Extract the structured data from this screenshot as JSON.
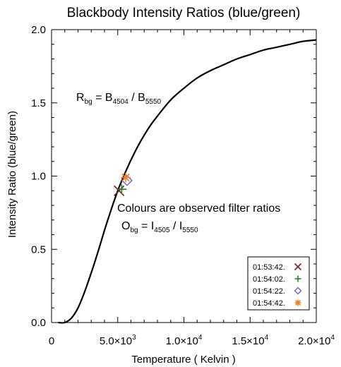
{
  "chart_data": {
    "type": "line",
    "title": "Blackbody Intensity Ratios (blue/green)",
    "xlabel": "Temperature ( Kelvin )",
    "ylabel": "Intensity Ratio (blue/green)",
    "xlim": [
      0,
      20000
    ],
    "ylim": [
      0,
      2.0
    ],
    "x_ticks": [
      {
        "value": 0,
        "label": "0",
        "mant": "",
        "exp": ""
      },
      {
        "value": 5000,
        "label": "",
        "mant": "5.0×10",
        "exp": "3"
      },
      {
        "value": 10000,
        "label": "",
        "mant": "1.0×10",
        "exp": "4"
      },
      {
        "value": 15000,
        "label": "",
        "mant": "1.5×10",
        "exp": "4"
      },
      {
        "value": 20000,
        "label": "",
        "mant": "2.0×10",
        "exp": "4"
      }
    ],
    "y_ticks": [
      {
        "value": 0.0,
        "label": "0.0"
      },
      {
        "value": 0.5,
        "label": "0.5"
      },
      {
        "value": 1.0,
        "label": "1.0"
      },
      {
        "value": 1.5,
        "label": "1.5"
      },
      {
        "value": 2.0,
        "label": "2.0"
      }
    ],
    "curve": {
      "x": [
        500,
        1000,
        1500,
        2000,
        2500,
        3000,
        3500,
        4000,
        4500,
        5000,
        5500,
        6000,
        6500,
        7000,
        7500,
        8000,
        9000,
        10000,
        11000,
        12000,
        13000,
        14000,
        15000,
        16000,
        17000,
        18000,
        19000,
        20000
      ],
      "y": [
        0.0,
        0.0,
        0.03,
        0.1,
        0.21,
        0.34,
        0.48,
        0.63,
        0.77,
        0.9,
        1.01,
        1.11,
        1.2,
        1.28,
        1.35,
        1.41,
        1.52,
        1.6,
        1.67,
        1.72,
        1.76,
        1.8,
        1.83,
        1.86,
        1.88,
        1.9,
        1.92,
        1.93
      ]
    },
    "annotations": {
      "rbg": {
        "main": "R",
        "sub": "bg",
        "eq": " = B",
        "sub2": "4504",
        "div": " / B",
        "sub3": "5550"
      },
      "observed_note": "Colours are observed filter ratios",
      "obg": {
        "main": "O",
        "sub": "bg",
        "eq": " = I",
        "sub2": "4505",
        "div": " / I",
        "sub3": "5550"
      }
    },
    "legend_position": "bottom-right",
    "series": [
      {
        "name": "01:53:42.",
        "marker": "x",
        "color": "#8b1a1a",
        "x": 5100,
        "y": 0.9
      },
      {
        "name": "01:54:02.",
        "marker": "plus",
        "color": "#1a8a1a",
        "x": 5300,
        "y": 0.91
      },
      {
        "name": "01:54:22.",
        "marker": "diamond",
        "color": "#5a5ae6",
        "x": 5700,
        "y": 0.97
      },
      {
        "name": "01:54:42.",
        "marker": "asterisk",
        "color": "#f08020",
        "x": 5600,
        "y": 0.99
      }
    ]
  }
}
